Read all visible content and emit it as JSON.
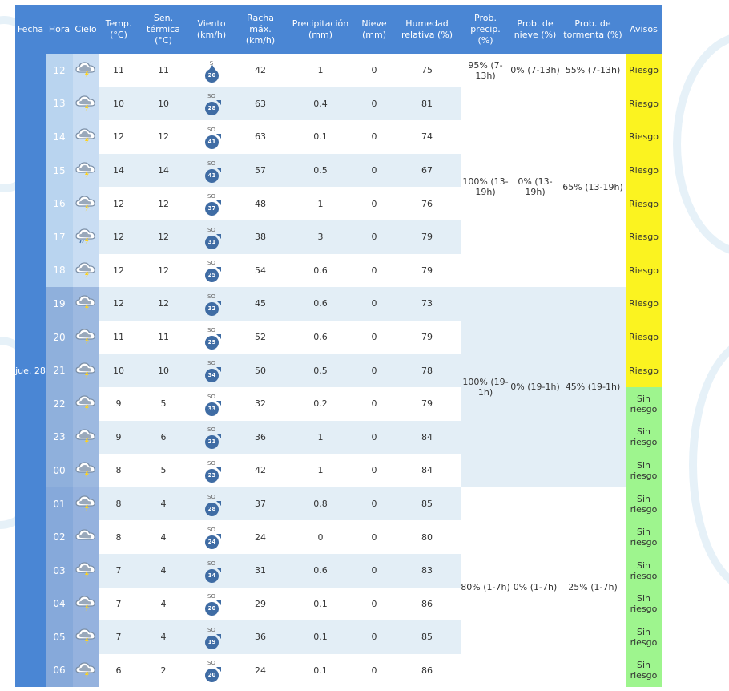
{
  "headers": {
    "fecha": "Fecha",
    "hora": "Hora",
    "cielo": "Cielo",
    "temp": "Temp. (°C)",
    "sen": "Sen. térmica (°C)",
    "viento": "Viento (km/h)",
    "racha": "Racha máx. (km/h)",
    "precip": "Precipitación (mm)",
    "nieve": "Nieve (mm)",
    "humedad": "Humedad relativa (%)",
    "prob_precip": "Prob. precip. (%)",
    "prob_nieve": "Prob. de nieve (%)",
    "prob_tormenta": "Prob. de tormenta (%)",
    "avisos": "Avisos"
  },
  "date_label": "jue. 28",
  "colors": {
    "header": "#4a86d4",
    "riesgo": "#fbf320",
    "sin_riesgo": "#9ef58e",
    "row_alt": "#e3eef6",
    "wind_circle": "#3f6ca4"
  },
  "rows": [
    {
      "hora": "12",
      "sky": "cloud-storm-icon",
      "temp": "11",
      "sen": "11",
      "dir": "S",
      "wind": "20",
      "racha": "42",
      "precip": "1",
      "nieve": "0",
      "hum": "75",
      "aviso": "Riesgo"
    },
    {
      "hora": "13",
      "sky": "cloud-storm-icon",
      "temp": "10",
      "sen": "10",
      "dir": "SO",
      "wind": "28",
      "racha": "63",
      "precip": "0.4",
      "nieve": "0",
      "hum": "81",
      "aviso": "Riesgo"
    },
    {
      "hora": "14",
      "sky": "cloud-storm-icon",
      "temp": "12",
      "sen": "12",
      "dir": "SO",
      "wind": "41",
      "racha": "63",
      "precip": "0.1",
      "nieve": "0",
      "hum": "74",
      "aviso": "Riesgo"
    },
    {
      "hora": "15",
      "sky": "cloud-storm-icon",
      "temp": "14",
      "sen": "14",
      "dir": "SO",
      "wind": "41",
      "racha": "57",
      "precip": "0.5",
      "nieve": "0",
      "hum": "67",
      "aviso": "Riesgo"
    },
    {
      "hora": "16",
      "sky": "cloud-storm-icon",
      "temp": "12",
      "sen": "12",
      "dir": "SO",
      "wind": "37",
      "racha": "48",
      "precip": "1",
      "nieve": "0",
      "hum": "76",
      "aviso": "Riesgo"
    },
    {
      "hora": "17",
      "sky": "cloud-storm-rain-icon",
      "temp": "12",
      "sen": "12",
      "dir": "SO",
      "wind": "31",
      "racha": "38",
      "precip": "3",
      "nieve": "0",
      "hum": "79",
      "aviso": "Riesgo"
    },
    {
      "hora": "18",
      "sky": "cloud-storm-icon",
      "temp": "12",
      "sen": "12",
      "dir": "SO",
      "wind": "25",
      "racha": "54",
      "precip": "0.6",
      "nieve": "0",
      "hum": "79",
      "aviso": "Riesgo"
    },
    {
      "hora": "19",
      "sky": "cloud-storm-icon",
      "temp": "12",
      "sen": "12",
      "dir": "SO",
      "wind": "32",
      "racha": "45",
      "precip": "0.6",
      "nieve": "0",
      "hum": "73",
      "aviso": "Riesgo"
    },
    {
      "hora": "20",
      "sky": "cloud-storm-icon",
      "temp": "11",
      "sen": "11",
      "dir": "SO",
      "wind": "29",
      "racha": "52",
      "precip": "0.6",
      "nieve": "0",
      "hum": "79",
      "aviso": "Riesgo"
    },
    {
      "hora": "21",
      "sky": "cloud-storm-icon",
      "temp": "10",
      "sen": "10",
      "dir": "SO",
      "wind": "34",
      "racha": "50",
      "precip": "0.5",
      "nieve": "0",
      "hum": "78",
      "aviso": "Riesgo"
    },
    {
      "hora": "22",
      "sky": "cloud-storm-icon",
      "temp": "9",
      "sen": "5",
      "dir": "SO",
      "wind": "33",
      "racha": "32",
      "precip": "0.2",
      "nieve": "0",
      "hum": "79",
      "aviso": "Sin riesgo"
    },
    {
      "hora": "23",
      "sky": "cloud-storm-icon",
      "temp": "9",
      "sen": "6",
      "dir": "SO",
      "wind": "21",
      "racha": "36",
      "precip": "1",
      "nieve": "0",
      "hum": "84",
      "aviso": "Sin riesgo"
    },
    {
      "hora": "00",
      "sky": "cloud-storm-icon",
      "temp": "8",
      "sen": "5",
      "dir": "SO",
      "wind": "23",
      "racha": "42",
      "precip": "1",
      "nieve": "0",
      "hum": "84",
      "aviso": "Sin riesgo"
    },
    {
      "hora": "01",
      "sky": "cloud-storm-icon",
      "temp": "8",
      "sen": "4",
      "dir": "SO",
      "wind": "28",
      "racha": "37",
      "precip": "0.8",
      "nieve": "0",
      "hum": "85",
      "aviso": "Sin riesgo"
    },
    {
      "hora": "02",
      "sky": "cloud-icon",
      "temp": "8",
      "sen": "4",
      "dir": "SO",
      "wind": "24",
      "racha": "24",
      "precip": "0",
      "nieve": "0",
      "hum": "80",
      "aviso": "Sin riesgo"
    },
    {
      "hora": "03",
      "sky": "cloud-storm-icon",
      "temp": "7",
      "sen": "4",
      "dir": "SO",
      "wind": "14",
      "racha": "31",
      "precip": "0.6",
      "nieve": "0",
      "hum": "83",
      "aviso": "Sin riesgo"
    },
    {
      "hora": "04",
      "sky": "cloud-storm-icon",
      "temp": "7",
      "sen": "4",
      "dir": "SO",
      "wind": "20",
      "racha": "29",
      "precip": "0.1",
      "nieve": "0",
      "hum": "86",
      "aviso": "Sin riesgo"
    },
    {
      "hora": "05",
      "sky": "cloud-storm-icon",
      "temp": "7",
      "sen": "4",
      "dir": "SO",
      "wind": "19",
      "racha": "36",
      "precip": "0.1",
      "nieve": "0",
      "hum": "85",
      "aviso": "Sin riesgo"
    },
    {
      "hora": "06",
      "sky": "cloud-storm-icon",
      "temp": "6",
      "sen": "2",
      "dir": "SO",
      "wind": "20",
      "racha": "24",
      "precip": "0.1",
      "nieve": "0",
      "hum": "86",
      "aviso": "Sin riesgo"
    }
  ],
  "prob_groups": [
    {
      "precip": "95% (7-13h)",
      "nieve": "0% (7-13h)",
      "tormenta": "55% (7-13h)"
    },
    {
      "precip": "100% (13-19h)",
      "nieve": "0% (13-19h)",
      "tormenta": "65% (13-19h)"
    },
    {
      "precip": "100% (19-1h)",
      "nieve": "0% (19-1h)",
      "tormenta": "45% (19-1h)"
    },
    {
      "precip": "80% (1-7h)",
      "nieve": "0% (1-7h)",
      "tormenta": "25% (1-7h)"
    }
  ]
}
